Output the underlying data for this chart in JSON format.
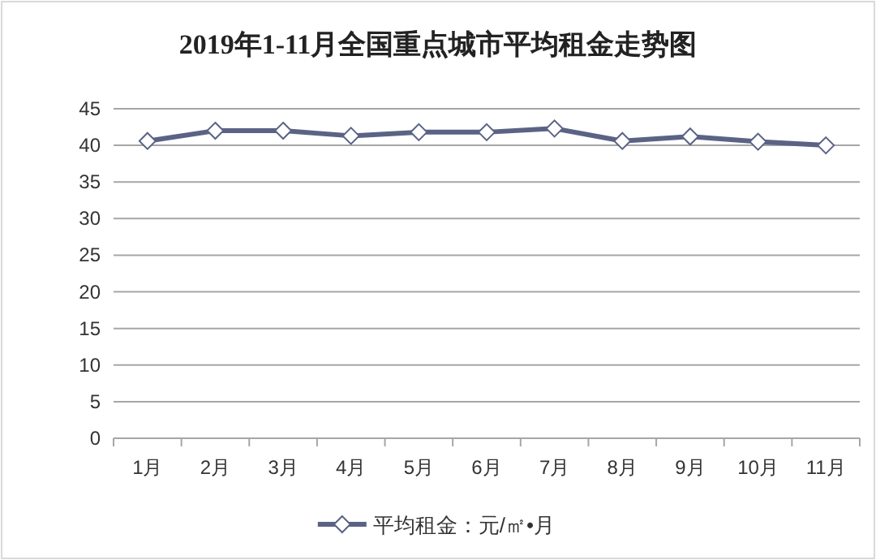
{
  "chart_data": {
    "type": "line",
    "title": "2019年1-11月全国重点城市平均租金走势图",
    "categories": [
      "1月",
      "2月",
      "3月",
      "4月",
      "5月",
      "6月",
      "7月",
      "8月",
      "9月",
      "10月",
      "11月"
    ],
    "series": [
      {
        "name": "平均租金：元/㎡•月",
        "color": "#5b6385",
        "values": [
          40.6,
          42.0,
          42.0,
          41.3,
          41.8,
          41.8,
          42.3,
          40.6,
          41.2,
          40.5,
          40.0
        ]
      }
    ],
    "ylim": [
      0,
      45
    ],
    "yticks": [
      0,
      5,
      10,
      15,
      20,
      25,
      30,
      35,
      40,
      45
    ],
    "grid": "y",
    "legend": "bottom",
    "marker": "diamond",
    "line_style": "solid"
  }
}
